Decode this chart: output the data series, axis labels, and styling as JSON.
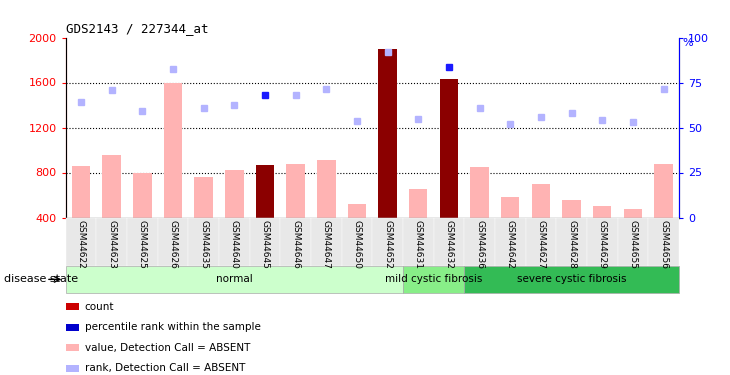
{
  "title": "GDS2143 / 227344_at",
  "samples": [
    "GSM44622",
    "GSM44623",
    "GSM44625",
    "GSM44626",
    "GSM44635",
    "GSM44640",
    "GSM44645",
    "GSM44646",
    "GSM44647",
    "GSM44650",
    "GSM44652",
    "GSM44631",
    "GSM44632",
    "GSM44636",
    "GSM44642",
    "GSM44627",
    "GSM44628",
    "GSM44629",
    "GSM44655",
    "GSM44656"
  ],
  "bar_values": [
    860,
    960,
    800,
    1600,
    760,
    820,
    870,
    880,
    910,
    520,
    1900,
    650,
    1630,
    850,
    580,
    700,
    560,
    500,
    480,
    880
  ],
  "bar_colors": [
    "#ffb3b3",
    "#ffb3b3",
    "#ffb3b3",
    "#ffb3b3",
    "#ffb3b3",
    "#ffb3b3",
    "#8b0000",
    "#ffb3b3",
    "#ffb3b3",
    "#ffb3b3",
    "#8b0000",
    "#ffb3b3",
    "#8b0000",
    "#ffb3b3",
    "#ffb3b3",
    "#ffb3b3",
    "#ffb3b3",
    "#ffb3b3",
    "#ffb3b3",
    "#ffb3b3"
  ],
  "rank_values": [
    1430,
    1530,
    1350,
    1720,
    1370,
    1400,
    1490,
    1490,
    1540,
    1260,
    1870,
    1280,
    1740,
    1370,
    1230,
    1290,
    1330,
    1270,
    1250,
    1540
  ],
  "rank_colors": [
    "#b3b3ff",
    "#b3b3ff",
    "#b3b3ff",
    "#b3b3ff",
    "#b3b3ff",
    "#b3b3ff",
    "#1a1aff",
    "#b3b3ff",
    "#b3b3ff",
    "#b3b3ff",
    "#b3b3ff",
    "#b3b3ff",
    "#1a1aff",
    "#b3b3ff",
    "#b3b3ff",
    "#b3b3ff",
    "#b3b3ff",
    "#b3b3ff",
    "#b3b3ff",
    "#b3b3ff"
  ],
  "ylim": [
    400,
    2000
  ],
  "yticks_left": [
    400,
    800,
    1200,
    1600,
    2000
  ],
  "yticks_right": [
    0,
    25,
    50,
    75,
    100
  ],
  "hlines": [
    800,
    1200,
    1600
  ],
  "group_labels": [
    "normal",
    "mild cystic fibrosis",
    "severe cystic fibrosis"
  ],
  "group_ranges": [
    [
      0,
      10
    ],
    [
      11,
      12
    ],
    [
      13,
      19
    ]
  ],
  "group_colors": [
    "#ccffcc",
    "#88ee88",
    "#33bb55"
  ],
  "disease_state_label": "disease state",
  "legend_items": [
    {
      "color": "#cc0000",
      "label": "count"
    },
    {
      "color": "#0000cc",
      "label": "percentile rank within the sample"
    },
    {
      "color": "#ffb3b3",
      "label": "value, Detection Call = ABSENT"
    },
    {
      "color": "#b3b3ff",
      "label": "rank, Detection Call = ABSENT"
    }
  ]
}
